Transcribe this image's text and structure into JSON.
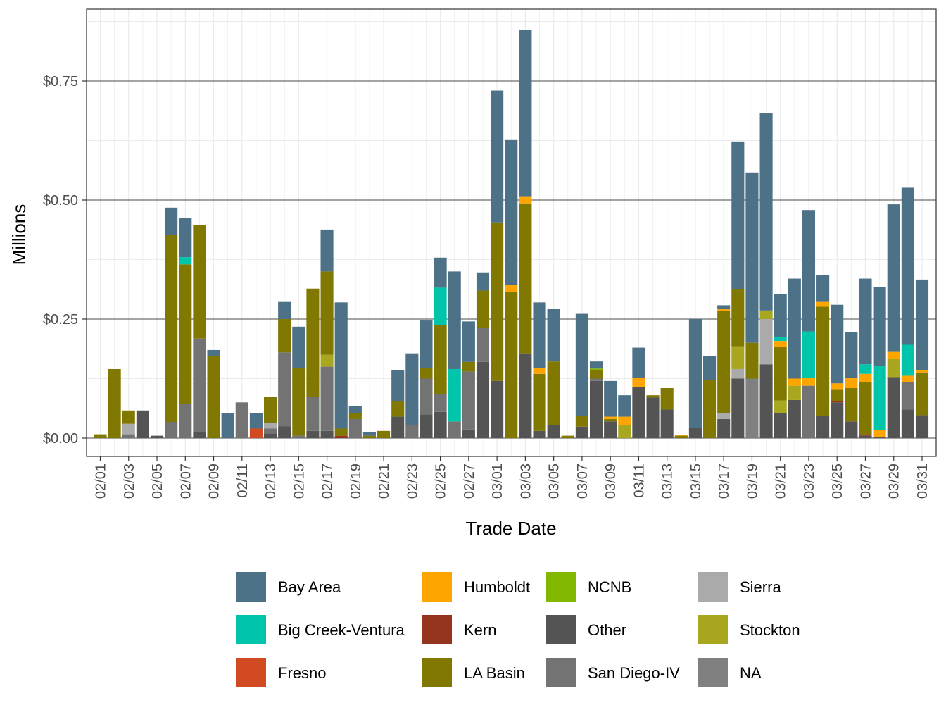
{
  "chart_data": {
    "type": "bar",
    "stacked": true,
    "title": "",
    "xlabel": "Trade Date",
    "ylabel": "Millions",
    "ylim": [
      -0.04,
      0.88
    ],
    "y_ticks": [
      0,
      0.25,
      0.5,
      0.75
    ],
    "y_tick_labels": [
      "$0.00",
      "$0.25",
      "$0.50",
      "$0.75"
    ],
    "x_tick_labels": [
      "02/01",
      "02/03",
      "02/05",
      "02/07",
      "02/09",
      "02/11",
      "02/13",
      "02/15",
      "02/17",
      "02/19",
      "02/21",
      "02/23",
      "02/25",
      "02/27",
      "03/01",
      "03/03",
      "03/05",
      "03/07",
      "03/09",
      "03/11",
      "03/13",
      "03/15",
      "03/17",
      "03/19",
      "03/21",
      "03/23",
      "03/25",
      "03/27",
      "03/29",
      "03/31"
    ],
    "categories": [
      "02/01",
      "02/02",
      "02/03",
      "02/04",
      "02/05",
      "02/06",
      "02/07",
      "02/08",
      "02/09",
      "02/10",
      "02/11",
      "02/12",
      "02/13",
      "02/14",
      "02/15",
      "02/16",
      "02/17",
      "02/18",
      "02/19",
      "02/20",
      "02/21",
      "02/22",
      "02/23",
      "02/24",
      "02/25",
      "02/26",
      "02/27",
      "02/28",
      "03/01",
      "03/02",
      "03/03",
      "03/04",
      "03/05",
      "03/06",
      "03/07",
      "03/08",
      "03/09",
      "03/10",
      "03/11",
      "03/12",
      "03/13",
      "03/14",
      "03/15",
      "03/16",
      "03/17",
      "03/18",
      "03/19",
      "03/20",
      "03/21",
      "03/22",
      "03/23",
      "03/24",
      "03/25",
      "03/26",
      "03/27",
      "03/28",
      "03/29",
      "03/30",
      "03/31"
    ],
    "legend_position": "bottom",
    "series": [
      {
        "name": "Other",
        "color": "#545454",
        "values": [
          0,
          0,
          0,
          0.058,
          0.005,
          0,
          0,
          0.012,
          0,
          0,
          0,
          0,
          0.01,
          0.025,
          0,
          0.015,
          0.015,
          0,
          0,
          0,
          0,
          0.045,
          0,
          0.05,
          0.055,
          0,
          0.018,
          0.16,
          0.12,
          0,
          0.178,
          0.015,
          0.028,
          0,
          0.024,
          0.12,
          0.035,
          0,
          0.108,
          0.085,
          0.06,
          0,
          0.022,
          0,
          0.04,
          0.125,
          0,
          0.155,
          0.052,
          0.08,
          0,
          0.046,
          0.075,
          0.035,
          0.005,
          0.002,
          0.128,
          0.06,
          0.048
        ]
      },
      {
        "name": "San Diego-IV",
        "color": "#737373",
        "values": [
          0,
          0,
          0.008,
          0,
          0,
          0.034,
          0.072,
          0.197,
          0,
          0,
          0.075,
          0,
          0.01,
          0.155,
          0.005,
          0.072,
          0.135,
          0,
          0.04,
          0,
          0,
          0,
          0.028,
          0.075,
          0.038,
          0.035,
          0.122,
          0.072,
          0,
          0,
          0,
          0,
          0,
          0,
          0,
          0.005,
          0,
          0,
          0,
          0,
          0,
          0,
          0,
          0,
          0,
          0,
          0,
          0,
          0,
          0,
          0.11,
          0,
          0,
          0,
          0,
          0,
          0,
          0.058,
          0
        ]
      },
      {
        "name": "NA",
        "color": "#808080",
        "values": [
          0,
          0,
          0,
          0,
          0,
          0,
          0,
          0,
          0,
          0,
          0,
          0,
          0,
          0,
          0,
          0,
          0,
          0,
          0,
          0,
          0,
          0,
          0,
          0,
          0,
          0,
          0,
          0,
          0,
          0,
          0,
          0,
          0,
          0,
          0,
          0,
          0,
          0,
          0,
          0,
          0,
          0,
          0,
          0,
          0,
          0,
          0.125,
          0,
          0,
          0,
          0,
          0,
          0,
          0,
          0,
          0,
          0,
          0,
          0
        ]
      },
      {
        "name": "Sierra",
        "color": "#aaaaaa",
        "values": [
          0,
          0,
          0.022,
          0,
          0,
          0,
          0,
          0,
          0,
          0,
          0,
          0,
          0.012,
          0,
          0,
          0,
          0,
          0,
          0,
          0,
          0,
          0,
          0,
          0,
          0,
          0,
          0,
          0,
          0,
          0,
          0,
          0,
          0,
          0,
          0,
          0,
          0,
          0,
          0,
          0,
          0,
          0,
          0,
          0,
          0.012,
          0.02,
          0,
          0.095,
          0,
          0,
          0,
          0,
          0,
          0,
          0,
          0,
          0,
          0,
          0
        ]
      },
      {
        "name": "Stockton",
        "color": "#a9a71f",
        "values": [
          0,
          0,
          0,
          0,
          0,
          0,
          0,
          0,
          0,
          0,
          0,
          0,
          0,
          0,
          0,
          0,
          0.025,
          0,
          0,
          0,
          0,
          0,
          0,
          0,
          0,
          0,
          0,
          0,
          0,
          0,
          0,
          0,
          0,
          0,
          0,
          0,
          0,
          0.027,
          0,
          0,
          0,
          0,
          0,
          0,
          0,
          0.048,
          0,
          0.018,
          0.027,
          0.03,
          0,
          0,
          0,
          0,
          0,
          0,
          0.038,
          0,
          0
        ]
      },
      {
        "name": "Kern",
        "color": "#96351e",
        "values": [
          0,
          0,
          0,
          0,
          0,
          0,
          0,
          0,
          0,
          0,
          0,
          0,
          0,
          0,
          0,
          0,
          0,
          0.005,
          0,
          0,
          0,
          0,
          0,
          0,
          0,
          0,
          0,
          0,
          0,
          0,
          0,
          0,
          0,
          0,
          0,
          0,
          0,
          0,
          0,
          0,
          0,
          0,
          0,
          0,
          0,
          0,
          0,
          0,
          0,
          0,
          0,
          0,
          0.003,
          0,
          0.003,
          0,
          0,
          0,
          0
        ]
      },
      {
        "name": "Fresno",
        "color": "#d24a22",
        "values": [
          0,
          0,
          0,
          0,
          0,
          0,
          0,
          0,
          0,
          0,
          0,
          0.02,
          0,
          0,
          0,
          0,
          0,
          0,
          0,
          0,
          0,
          0,
          0,
          0,
          0,
          0,
          0,
          0,
          0,
          0,
          0,
          0,
          0,
          0,
          0,
          0,
          0,
          0,
          0,
          0,
          0,
          0,
          0,
          0,
          0,
          0,
          0,
          0,
          0,
          0,
          0,
          0,
          0,
          0,
          0,
          0,
          0,
          0,
          0
        ]
      },
      {
        "name": "LA Basin",
        "color": "#807800",
        "values": [
          0.008,
          0.145,
          0.028,
          0,
          0,
          0.393,
          0.293,
          0.238,
          0.173,
          0,
          0,
          0,
          0.055,
          0.07,
          0.142,
          0.227,
          0.175,
          0.015,
          0.012,
          0.005,
          0.015,
          0.032,
          0,
          0.022,
          0.145,
          0,
          0.02,
          0.078,
          0.333,
          0.307,
          0.315,
          0.12,
          0.133,
          0.005,
          0.022,
          0.018,
          0.005,
          0,
          0,
          0.005,
          0.045,
          0.005,
          0,
          0.122,
          0.215,
          0.12,
          0.075,
          0,
          0.112,
          0,
          0,
          0.23,
          0.025,
          0.07,
          0.11,
          0,
          0,
          0,
          0.09
        ]
      },
      {
        "name": "NCNB",
        "color": "#83b800",
        "values": [
          0,
          0,
          0,
          0,
          0,
          0,
          0,
          0,
          0,
          0,
          0,
          0,
          0,
          0,
          0,
          0,
          0,
          0,
          0,
          0,
          0,
          0,
          0,
          0,
          0,
          0,
          0,
          0,
          0,
          0,
          0,
          0,
          0,
          0,
          0,
          0.003,
          0,
          0,
          0,
          0,
          0,
          0,
          0,
          0,
          0,
          0,
          0,
          0,
          0,
          0,
          0,
          0,
          0,
          0,
          0,
          0,
          0,
          0,
          0
        ]
      },
      {
        "name": "Humboldt",
        "color": "#ffa500",
        "values": [
          0,
          0,
          0,
          0,
          0,
          0,
          0,
          0,
          0,
          0,
          0,
          0,
          0,
          0,
          0,
          0,
          0,
          0,
          0,
          0,
          0,
          0,
          0,
          0,
          0,
          0,
          0,
          0,
          0,
          0.015,
          0.015,
          0.012,
          0,
          0,
          0,
          0,
          0.005,
          0.018,
          0.018,
          0,
          0,
          0.002,
          0,
          0,
          0.005,
          0,
          0,
          0,
          0.013,
          0.015,
          0.017,
          0.01,
          0.012,
          0.022,
          0.017,
          0.015,
          0.015,
          0.013,
          0.005
        ]
      },
      {
        "name": "Big Creek-Ventura",
        "color": "#00c5aa",
        "values": [
          0,
          0,
          0,
          0,
          0,
          0,
          0.015,
          0,
          0,
          0,
          0,
          0,
          0,
          0,
          0,
          0,
          0,
          0,
          0,
          0,
          0,
          0,
          0,
          0,
          0.078,
          0.11,
          0,
          0,
          0,
          0,
          0,
          0,
          0,
          0,
          0,
          0,
          0,
          0,
          0,
          0,
          0,
          0,
          0,
          0,
          0,
          0,
          0,
          0,
          0.008,
          0,
          0.097,
          0,
          0,
          0,
          0.02,
          0.135,
          0,
          0.065,
          0
        ]
      },
      {
        "name": "Bay Area",
        "color": "#4d7287",
        "values": [
          0,
          0,
          0,
          0,
          0,
          0.057,
          0.083,
          0,
          0.012,
          0.053,
          0,
          0.033,
          0,
          0.036,
          0.087,
          0,
          0.088,
          0.265,
          0.015,
          0.008,
          0,
          0.065,
          0.15,
          0.1,
          0.063,
          0.205,
          0.085,
          0.038,
          0.277,
          0.304,
          0.35,
          0.138,
          0.11,
          0,
          0.215,
          0.015,
          0.075,
          0.045,
          0.064,
          0,
          0,
          0,
          0.228,
          0.05,
          0.007,
          0.31,
          0.358,
          0.415,
          0.09,
          0.21,
          0.255,
          0.057,
          0.165,
          0.095,
          0.18,
          0.165,
          0.31,
          0.33,
          0.19
        ]
      }
    ],
    "legend": [
      "Bay Area",
      "Big Creek-Ventura",
      "Fresno",
      "Humboldt",
      "Kern",
      "LA Basin",
      "NCNB",
      "Other",
      "San Diego-IV",
      "Sierra",
      "Stockton",
      "NA"
    ]
  }
}
